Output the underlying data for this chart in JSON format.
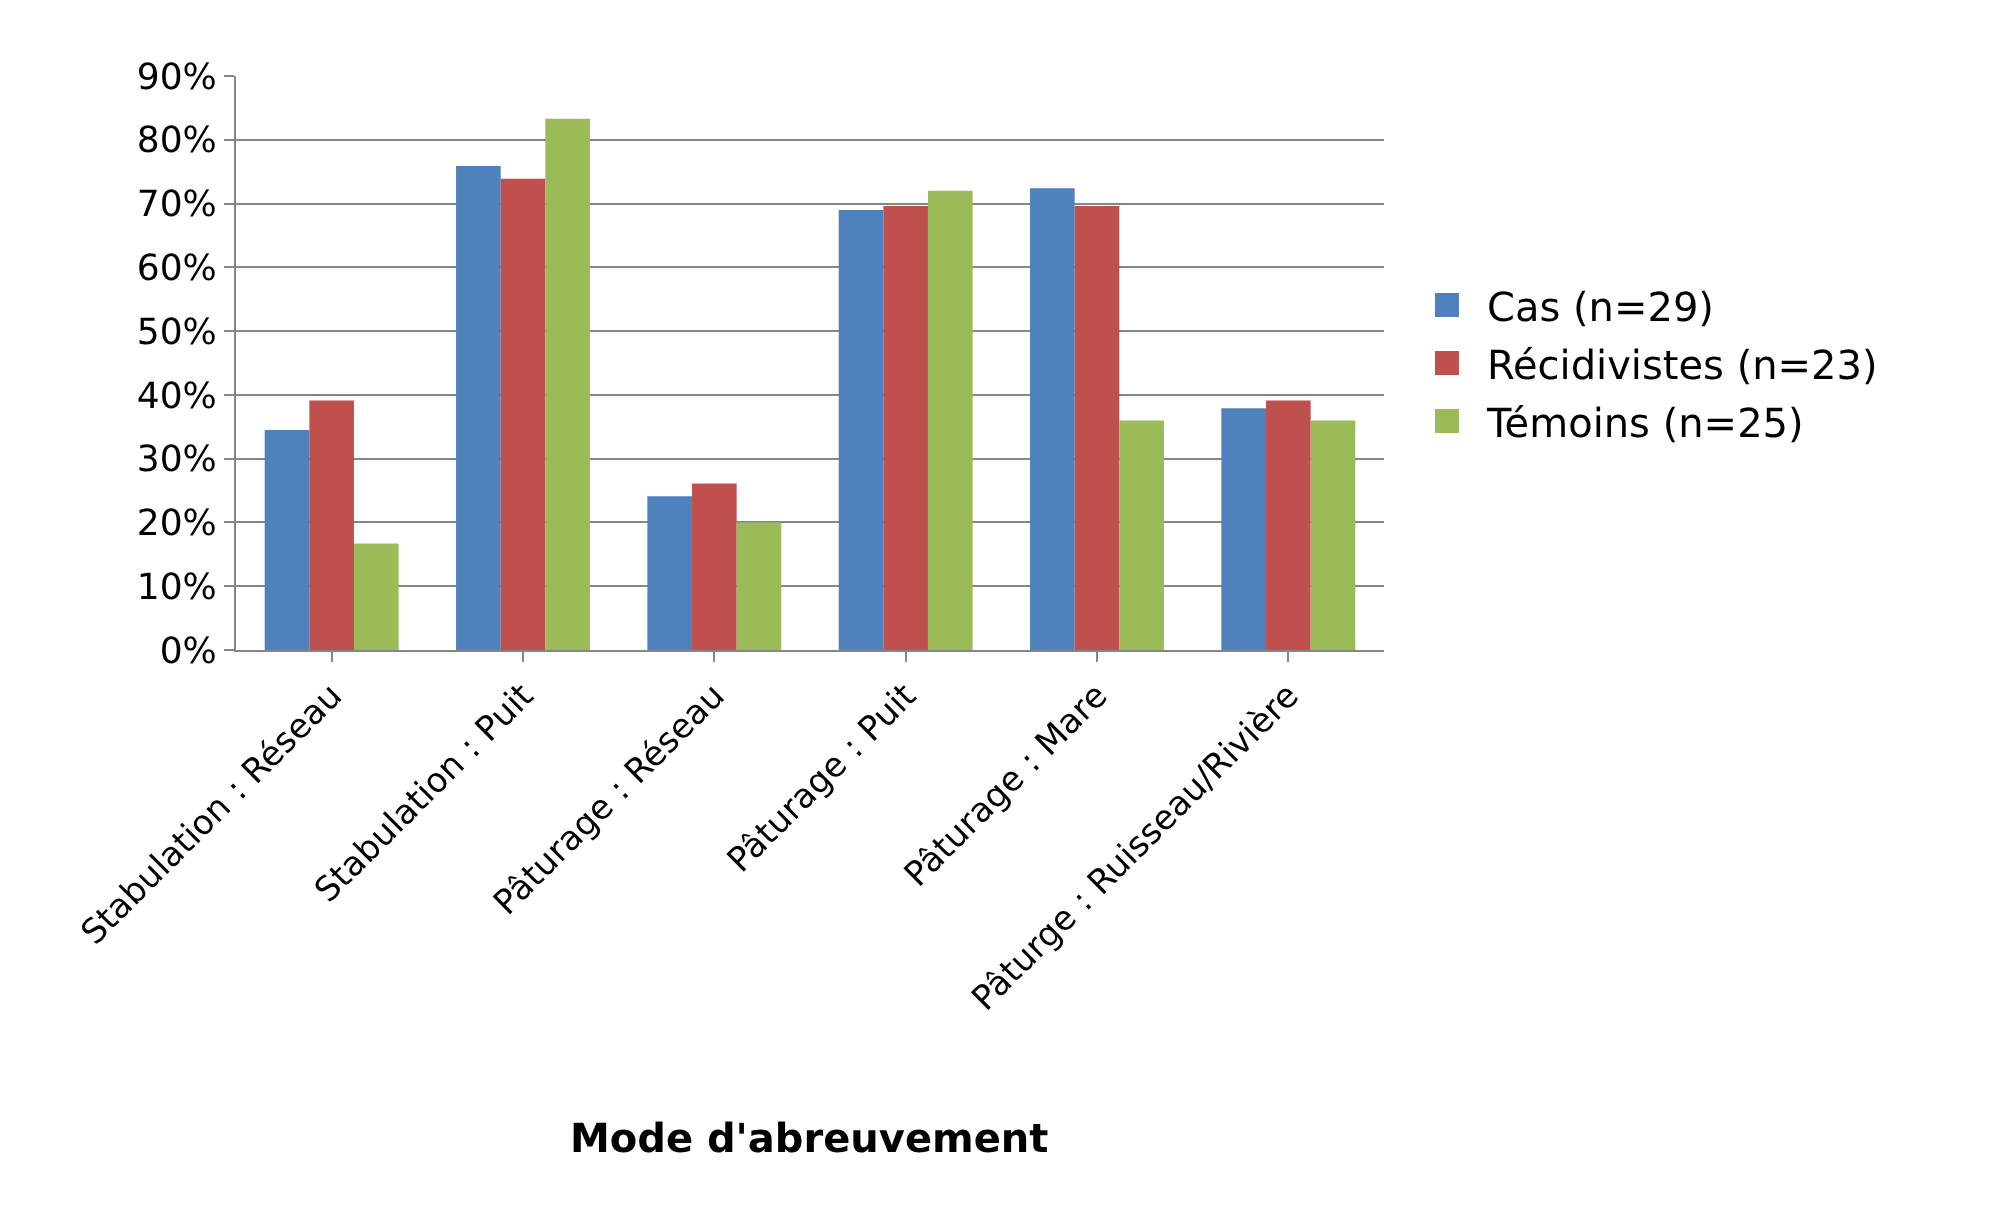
{
  "chart_data": {
    "type": "bar",
    "xlabel": "Mode d'abreuvement",
    "categories": [
      "Stabulation : Réseau",
      "Stabulation : Puit",
      "Pâturage : Réseau",
      "Pâturage : Puit",
      "Pâturage : Mare",
      "Pâturge : Ruisseau/Rivière"
    ],
    "series": [
      {
        "name": "Cas (n=29)",
        "color": "#4f81bd",
        "values": [
          34.5,
          75.9,
          24.1,
          69.0,
          72.4,
          37.9
        ]
      },
      {
        "name": "Récidivistes (n=23)",
        "color": "#c0504d",
        "values": [
          39.1,
          73.9,
          26.1,
          69.6,
          69.6,
          39.1
        ]
      },
      {
        "name": "Témoins (n=25)",
        "color": "#9bbb59",
        "values": [
          16.7,
          83.3,
          20.0,
          72.0,
          36.0,
          36.0
        ]
      }
    ],
    "ylim": [
      0,
      90
    ],
    "yticks": [
      {
        "value": 0,
        "label": "0%"
      },
      {
        "value": 10,
        "label": "10%"
      },
      {
        "value": 20,
        "label": "20%"
      },
      {
        "value": 30,
        "label": "30%"
      },
      {
        "value": 40,
        "label": "40%"
      },
      {
        "value": 50,
        "label": "50%"
      },
      {
        "value": 60,
        "label": "60%"
      },
      {
        "value": 70,
        "label": "70%"
      },
      {
        "value": 80,
        "label": "80%"
      },
      {
        "value": 90,
        "label": "90%"
      }
    ],
    "grid": "y",
    "legend": "right"
  }
}
